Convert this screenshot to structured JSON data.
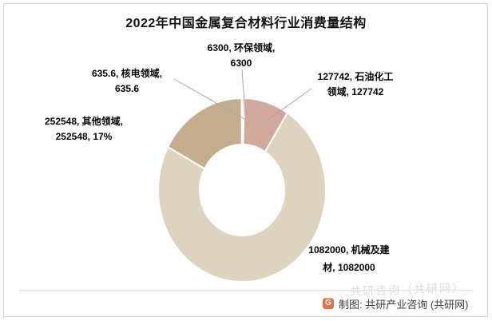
{
  "chart_data": {
    "type": "pie",
    "subtype": "donut",
    "title": "2022年中国金属复合材料行业消费量结构",
    "legend": "none",
    "label_format": "value, category, value",
    "slices": [
      {
        "name": "环保领域",
        "value": 6300,
        "color": "#dccfc5",
        "data_label": "6300, 环保领域, 6300"
      },
      {
        "name": "石油化工领域",
        "value": 127742,
        "color": "#d0a89c",
        "data_label": "127742, 石油化工领域, 127742"
      },
      {
        "name": "机械及建材",
        "value": 1082000,
        "color": "#ddd3bf",
        "data_label": "1082000, 机械及建材, 1082000"
      },
      {
        "name": "其他领域",
        "value": 252548,
        "color": "#c4ad8e",
        "data_label": "252548, 其他领域, 252548, 17%"
      },
      {
        "name": "核电领域",
        "value": 635.6,
        "color": "#b9a892",
        "data_label": "635.6, 核电领域, 635.6"
      }
    ]
  },
  "callouts": {
    "huanbao": {
      "line1": "6300, 环保领域,",
      "line2": "6300"
    },
    "shiyou": {
      "line1": "127742, 石油化工",
      "line2": "领域, 127742"
    },
    "hedian": {
      "line1": "635.6, 核电领域,",
      "line2": "635.6"
    },
    "qita": {
      "line1": "252548, 其他领域,",
      "line2": "252548, 17%"
    },
    "jixie": {
      "line1": "1082000, 机械及建",
      "line2": "材, 1082000"
    }
  },
  "footer": {
    "credit": "制图: 共研产业咨询 (共研网)",
    "logo_letter": "G",
    "logo_color": "#ec6f45",
    "watermark": "共研咨询（共研网）"
  }
}
